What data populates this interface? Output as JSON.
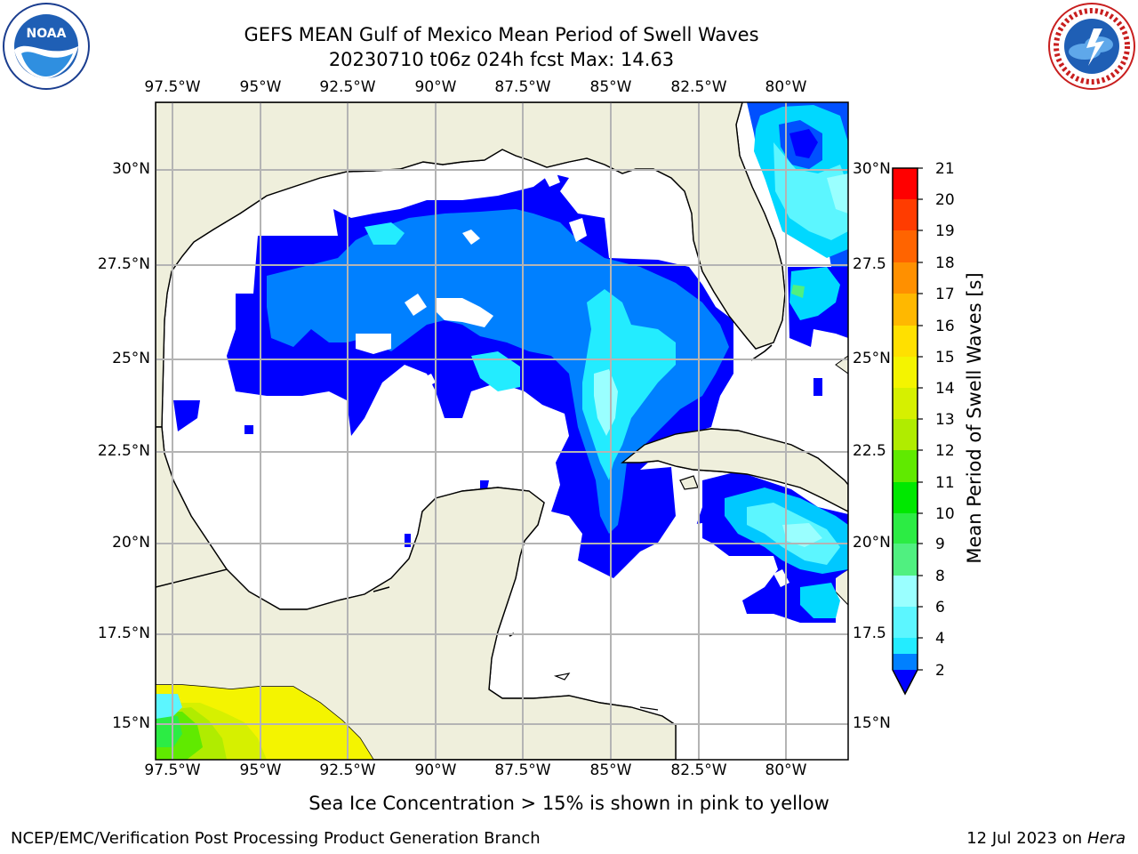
{
  "title": {
    "line1": "GEFS MEAN Gulf of Mexico Mean Period of Swell Waves",
    "line2": "20230710 t06z 024h fcst   Max: 14.63"
  },
  "logos": {
    "left": "noara-logo",
    "right": "nws-logo"
  },
  "map": {
    "lon_ticks": [
      "97.5°W",
      "95°W",
      "92.5°W",
      "90°W",
      "87.5°W",
      "85°W",
      "82.5°W",
      "80°W"
    ],
    "lat_ticks_left": [
      "30°N",
      "27.5°N",
      "25°N",
      "22.5°N",
      "20°N",
      "17.5°N",
      "15°N"
    ],
    "lat_ticks_right": [
      "30°N",
      "27.5",
      "25°N",
      "22.5",
      "20°N",
      "17.5",
      "15°N"
    ],
    "land_color": "#efefdc",
    "ocean_color": "#ffffff",
    "grid_color": "#b4b4b4"
  },
  "colorbar": {
    "label": "Mean Period of Swell Waves [s]",
    "ticks": [
      "2",
      "4",
      "6",
      "8",
      "9",
      "10",
      "11",
      "12",
      "13",
      "14",
      "15",
      "16",
      "17",
      "18",
      "19",
      "20",
      "21"
    ],
    "colors": [
      "#0050ff",
      "#00d8ff",
      "#23ecff",
      "#5cf6ff",
      "#9affff",
      "#50f080",
      "#2cec44",
      "#00e800",
      "#60ea00",
      "#b0ec00",
      "#d6f000",
      "#f4f400",
      "#ffe000",
      "#ffb800",
      "#ff9000",
      "#ff6400",
      "#ff3c00",
      "#ff0000"
    ],
    "under_color": "#0000ff"
  },
  "caption": "Sea Ice Concentration > 15% is shown in pink to yellow",
  "footer": {
    "left": "NCEP/EMC/Verification Post Processing Product Generation Branch",
    "date": "12 Jul 2023 on ",
    "machine": "Hera"
  }
}
